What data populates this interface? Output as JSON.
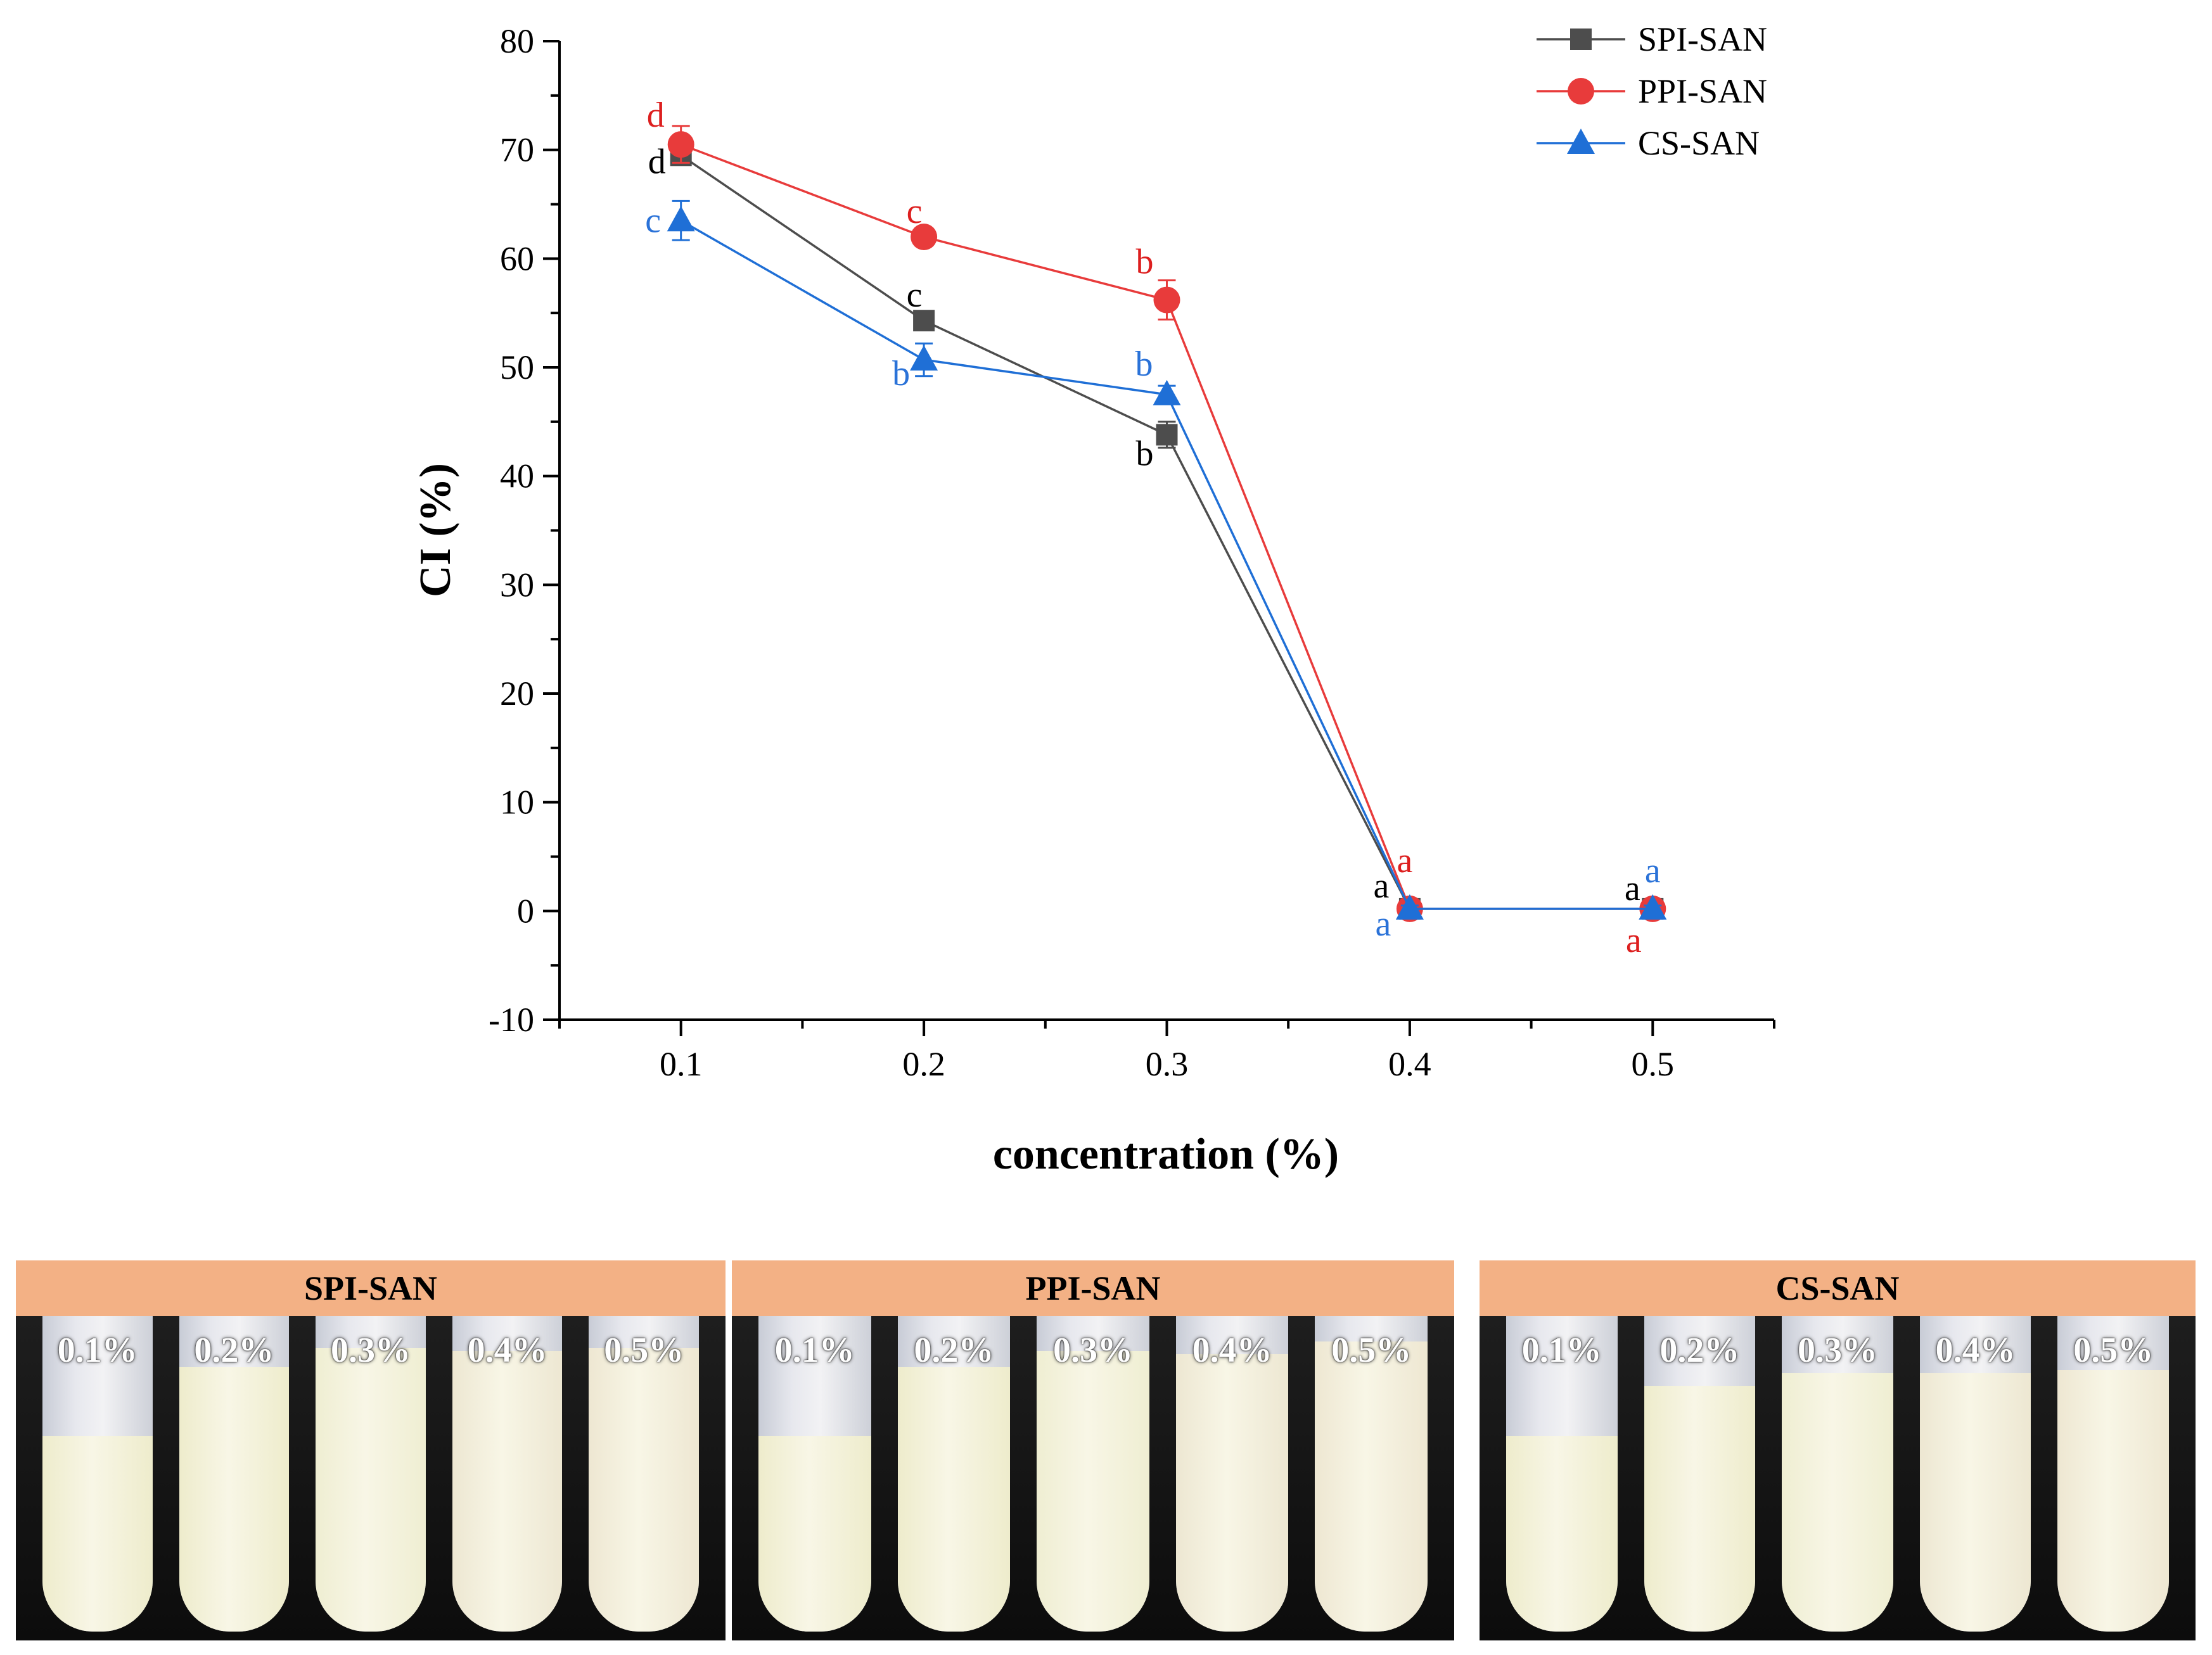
{
  "chart_data": {
    "type": "line",
    "xlabel": "concentration (%)",
    "ylabel": "CI (%)",
    "ylim": [
      -10,
      80
    ],
    "xlim": [
      0.05,
      0.55
    ],
    "x": [
      0.1,
      0.2,
      0.3,
      0.4,
      0.5
    ],
    "x_tick_labels": [
      "0.1",
      "0.2",
      "0.3",
      "0.4",
      "0.5"
    ],
    "y_ticks": [
      -10,
      0,
      10,
      20,
      30,
      40,
      50,
      60,
      70,
      80
    ],
    "y_tick_labels": [
      "-10",
      "0",
      "10",
      "20",
      "30",
      "40",
      "50",
      "60",
      "70",
      "80"
    ],
    "legend_position": "top-right",
    "series": [
      {
        "name": "SPI-SAN",
        "marker": "square",
        "color": "#4d4d4d",
        "label_color": "#000000",
        "values": [
          69.5,
          54.3,
          43.8,
          0.2,
          0.2
        ],
        "errors": [
          0.8,
          0.8,
          1.2,
          0.3,
          0.3
        ],
        "letters": [
          "d",
          "c",
          "b",
          "a",
          "a"
        ]
      },
      {
        "name": "PPI-SAN",
        "marker": "circle",
        "color": "#e83b3b",
        "label_color": "#dd1f1f",
        "values": [
          70.5,
          62.0,
          56.2,
          0.2,
          0.2
        ],
        "errors": [
          1.7,
          0.6,
          1.8,
          0.3,
          0.3
        ],
        "letters": [
          "d",
          "c",
          "b",
          "a",
          "a"
        ]
      },
      {
        "name": "CS-SAN",
        "marker": "triangle",
        "color": "#1f6fd6",
        "label_color": "#2a72d8",
        "values": [
          63.5,
          50.7,
          47.5,
          0.2,
          0.2
        ],
        "errors": [
          1.8,
          1.5,
          0.8,
          0.3,
          0.3
        ],
        "letters": [
          "c",
          "b",
          "b",
          "a",
          "a"
        ]
      }
    ]
  },
  "photos": {
    "panels": [
      {
        "title": "SPI-SAN",
        "tubes": [
          {
            "label": "0.1%",
            "level": 0.62,
            "color": "#eeeccc"
          },
          {
            "label": "0.2%",
            "level": 0.84,
            "color": "#eeeccc"
          },
          {
            "label": "0.3%",
            "level": 0.9,
            "color": "#efeed2"
          },
          {
            "label": "0.4%",
            "level": 0.89,
            "color": "#ede7d2"
          },
          {
            "label": "0.5%",
            "level": 0.9,
            "color": "#eee7d2"
          }
        ]
      },
      {
        "title": "PPI-SAN",
        "tubes": [
          {
            "label": "0.1%",
            "level": 0.62,
            "color": "#eeeccc"
          },
          {
            "label": "0.2%",
            "level": 0.84,
            "color": "#eeeccc"
          },
          {
            "label": "0.3%",
            "level": 0.89,
            "color": "#efeed2"
          },
          {
            "label": "0.4%",
            "level": 0.88,
            "color": "#ede7d2"
          },
          {
            "label": "0.5%",
            "level": 0.92,
            "color": "#eee7d2"
          }
        ]
      },
      {
        "title": "CS-SAN",
        "tubes": [
          {
            "label": "0.1%",
            "level": 0.62,
            "color": "#eeeccc"
          },
          {
            "label": "0.2%",
            "level": 0.78,
            "color": "#eeeccc"
          },
          {
            "label": "0.3%",
            "level": 0.82,
            "color": "#efeed2"
          },
          {
            "label": "0.4%",
            "level": 0.82,
            "color": "#ede7d2"
          },
          {
            "label": "0.5%",
            "level": 0.83,
            "color": "#eee7d2"
          }
        ]
      }
    ]
  }
}
